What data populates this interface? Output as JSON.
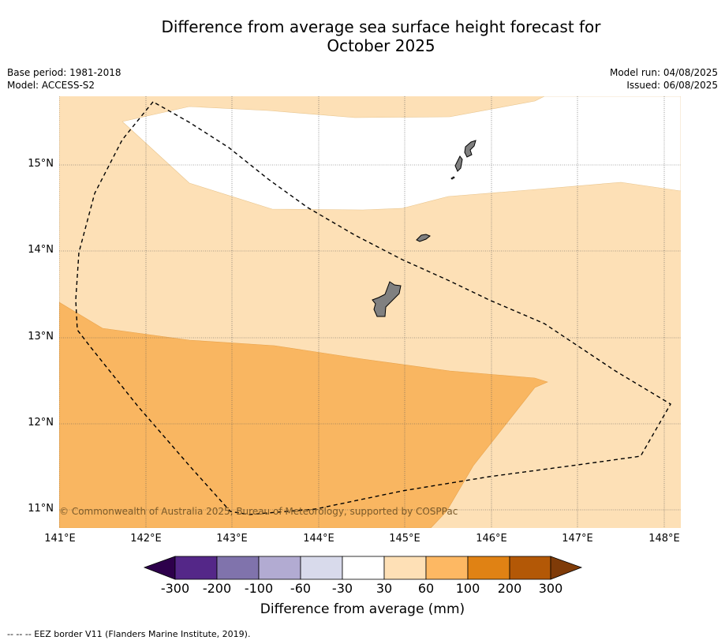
{
  "title": "Difference from average sea surface height forecast for\nOctober 2025",
  "title_line1": "Difference from average sea surface height forecast for",
  "title_line2": "October 2025",
  "meta": {
    "base_period": "Base period: 1981-2018",
    "model": "Model: ACCESS-S2",
    "model_run": "Model run: 04/08/2025",
    "issued": "Issued: 06/08/2025"
  },
  "map": {
    "lat_labels": [
      "15°N",
      "14°N",
      "13°N",
      "12°N",
      "11°N"
    ],
    "lon_labels": [
      "141°E",
      "142°E",
      "143°E",
      "144°E",
      "145°E",
      "146°E",
      "147°E",
      "148°E"
    ],
    "copyright": "© Commonwealth of Australia 2025, Bureau of Meteorology, supported by COSPPac",
    "colors": {
      "band_30_60": "#fde0b6",
      "band_60_100": "#f9b661",
      "neutral": "#ffffff",
      "land": "#808080"
    }
  },
  "colorbar": {
    "title": "Difference from average (mm)",
    "ticks": [
      "-300",
      "-200",
      "-100",
      "-60",
      "-30",
      "30",
      "60",
      "100",
      "200",
      "300"
    ],
    "colors": [
      "#2d004b",
      "#542788",
      "#8073ac",
      "#b2abd2",
      "#d8daeb",
      "#ffffff",
      "#fee0b6",
      "#fdb863",
      "#e08214",
      "#b35806",
      "#7f3b08"
    ]
  },
  "footer": "-- -- -- EEZ border V11 (Flanders Marine Institute, 2019)."
}
